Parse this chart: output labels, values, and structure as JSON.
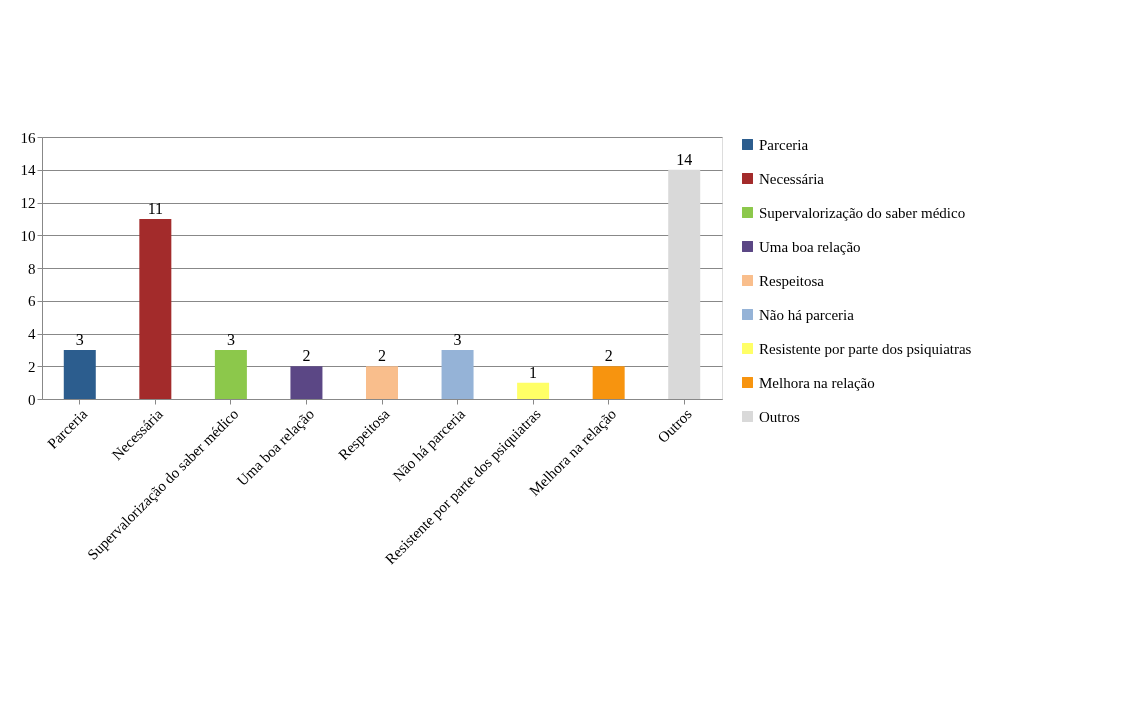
{
  "chart_data": {
    "type": "bar",
    "categories": [
      "Parceria",
      "Necessária",
      "Supervalorização do saber médico",
      "Uma boa relação",
      "Respeitosa",
      "Não há parceria",
      "Resistente por parte dos psiquiatras",
      "Melhora na relação",
      "Outros"
    ],
    "series": [
      {
        "name": "Parceria",
        "color": "#2c5d8e",
        "values": [
          3,
          null,
          null,
          null,
          null,
          null,
          null,
          null,
          null
        ]
      },
      {
        "name": "Necessária",
        "color": "#a32b2b",
        "values": [
          null,
          11,
          null,
          null,
          null,
          null,
          null,
          null,
          null
        ]
      },
      {
        "name": "Supervalorização do saber médico",
        "color": "#8cc84b",
        "values": [
          null,
          null,
          3,
          null,
          null,
          null,
          null,
          null,
          null
        ]
      },
      {
        "name": "Uma boa relação",
        "color": "#5b4785",
        "values": [
          null,
          null,
          null,
          2,
          null,
          null,
          null,
          null,
          null
        ]
      },
      {
        "name": "Respeitosa",
        "color": "#f9be8c",
        "values": [
          null,
          null,
          null,
          null,
          2,
          null,
          null,
          null,
          null
        ]
      },
      {
        "name": "Não há parceria",
        "color": "#95b3d7",
        "values": [
          null,
          null,
          null,
          null,
          null,
          3,
          null,
          null,
          null
        ]
      },
      {
        "name": "Resistente por parte dos psiquiatras",
        "color": "#ffff66",
        "values": [
          null,
          null,
          null,
          null,
          null,
          null,
          1,
          null,
          null
        ]
      },
      {
        "name": "Melhora na relação",
        "color": "#f7940f",
        "values": [
          null,
          null,
          null,
          null,
          null,
          null,
          null,
          2,
          null
        ]
      },
      {
        "name": "Outros",
        "color": "#d9d9d9",
        "values": [
          null,
          null,
          null,
          null,
          null,
          null,
          null,
          null,
          14
        ]
      }
    ],
    "ylim": [
      0,
      16
    ],
    "yticks": [
      0,
      2,
      4,
      6,
      8,
      10,
      12,
      14,
      16
    ],
    "grid": "y",
    "legend": "right",
    "data_labels": true
  }
}
